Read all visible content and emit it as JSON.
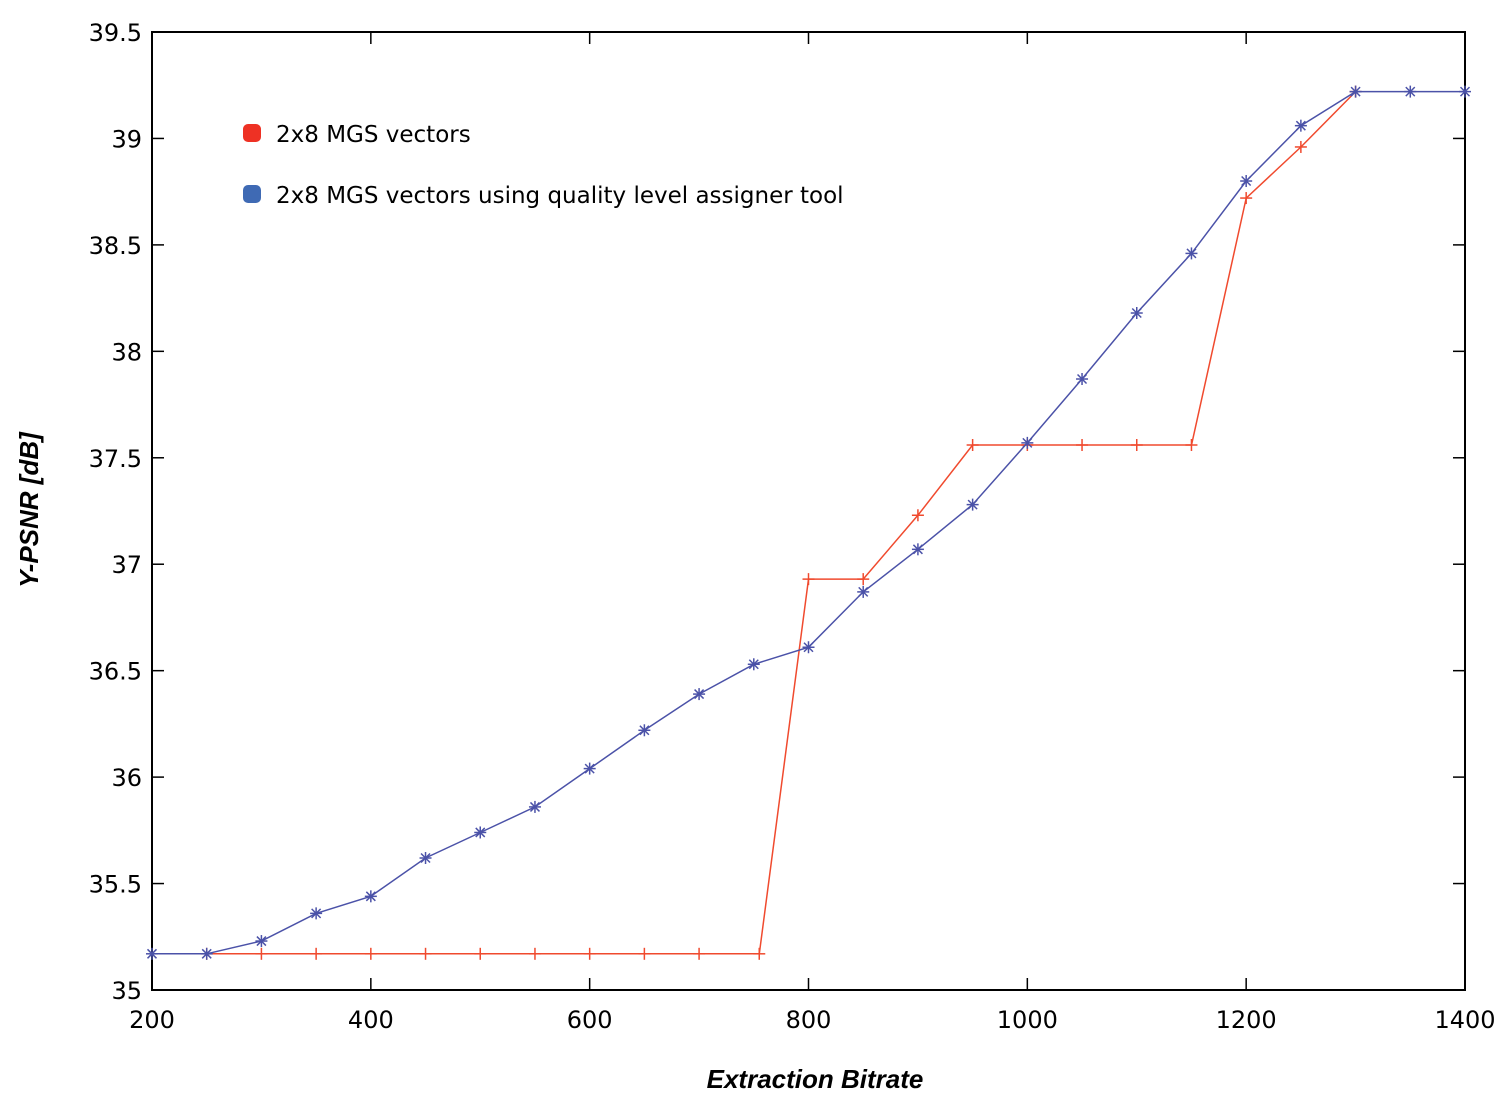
{
  "chart_data": {
    "type": "line",
    "title": "",
    "xlabel": "Extraction Bitrate",
    "ylabel": "Y-PSNR [dB]",
    "xlim": [
      200,
      1400
    ],
    "ylim": [
      35,
      39.5
    ],
    "xticks": [
      200,
      400,
      600,
      800,
      1000,
      1200,
      1400
    ],
    "yticks": [
      35,
      35.5,
      36,
      36.5,
      37,
      37.5,
      38,
      38.5,
      39,
      39.5
    ],
    "grid": false,
    "legend_position": "top-left",
    "x": [
      200,
      250,
      300,
      350,
      400,
      450,
      500,
      550,
      600,
      650,
      700,
      750,
      800,
      850,
      900,
      950,
      1000,
      1050,
      1100,
      1150,
      1200,
      1250,
      1300,
      1350,
      1400
    ],
    "series": [
      {
        "name": "2x8 MGS vectors",
        "color": "#ee3124",
        "line_color": "#f04a2e",
        "marker": "plus",
        "x": [
          250,
          300,
          350,
          400,
          450,
          500,
          550,
          600,
          650,
          700,
          755,
          800,
          850,
          900,
          950,
          1000,
          1050,
          1100,
          1150,
          1200,
          1250,
          1300
        ],
        "values": [
          35.17,
          35.17,
          35.17,
          35.17,
          35.17,
          35.17,
          35.17,
          35.17,
          35.17,
          35.17,
          35.17,
          36.93,
          36.93,
          37.23,
          37.56,
          37.56,
          37.56,
          37.56,
          37.56,
          38.72,
          38.96,
          39.22
        ]
      },
      {
        "name": "2x8 MGS vectors using quality level assigner tool",
        "color": "#3f6ab4",
        "line_color": "#4b52a8",
        "marker": "asterisk",
        "x": [
          200,
          250,
          300,
          350,
          400,
          450,
          500,
          550,
          600,
          650,
          700,
          750,
          800,
          850,
          900,
          950,
          1000,
          1050,
          1100,
          1150,
          1200,
          1250,
          1300,
          1350,
          1400
        ],
        "values": [
          35.17,
          35.17,
          35.23,
          35.36,
          35.44,
          35.62,
          35.74,
          35.86,
          36.04,
          36.22,
          36.39,
          36.53,
          36.61,
          36.87,
          37.07,
          37.28,
          37.57,
          37.87,
          38.18,
          38.46,
          38.8,
          39.06,
          39.22,
          39.22,
          39.22
        ]
      }
    ]
  }
}
